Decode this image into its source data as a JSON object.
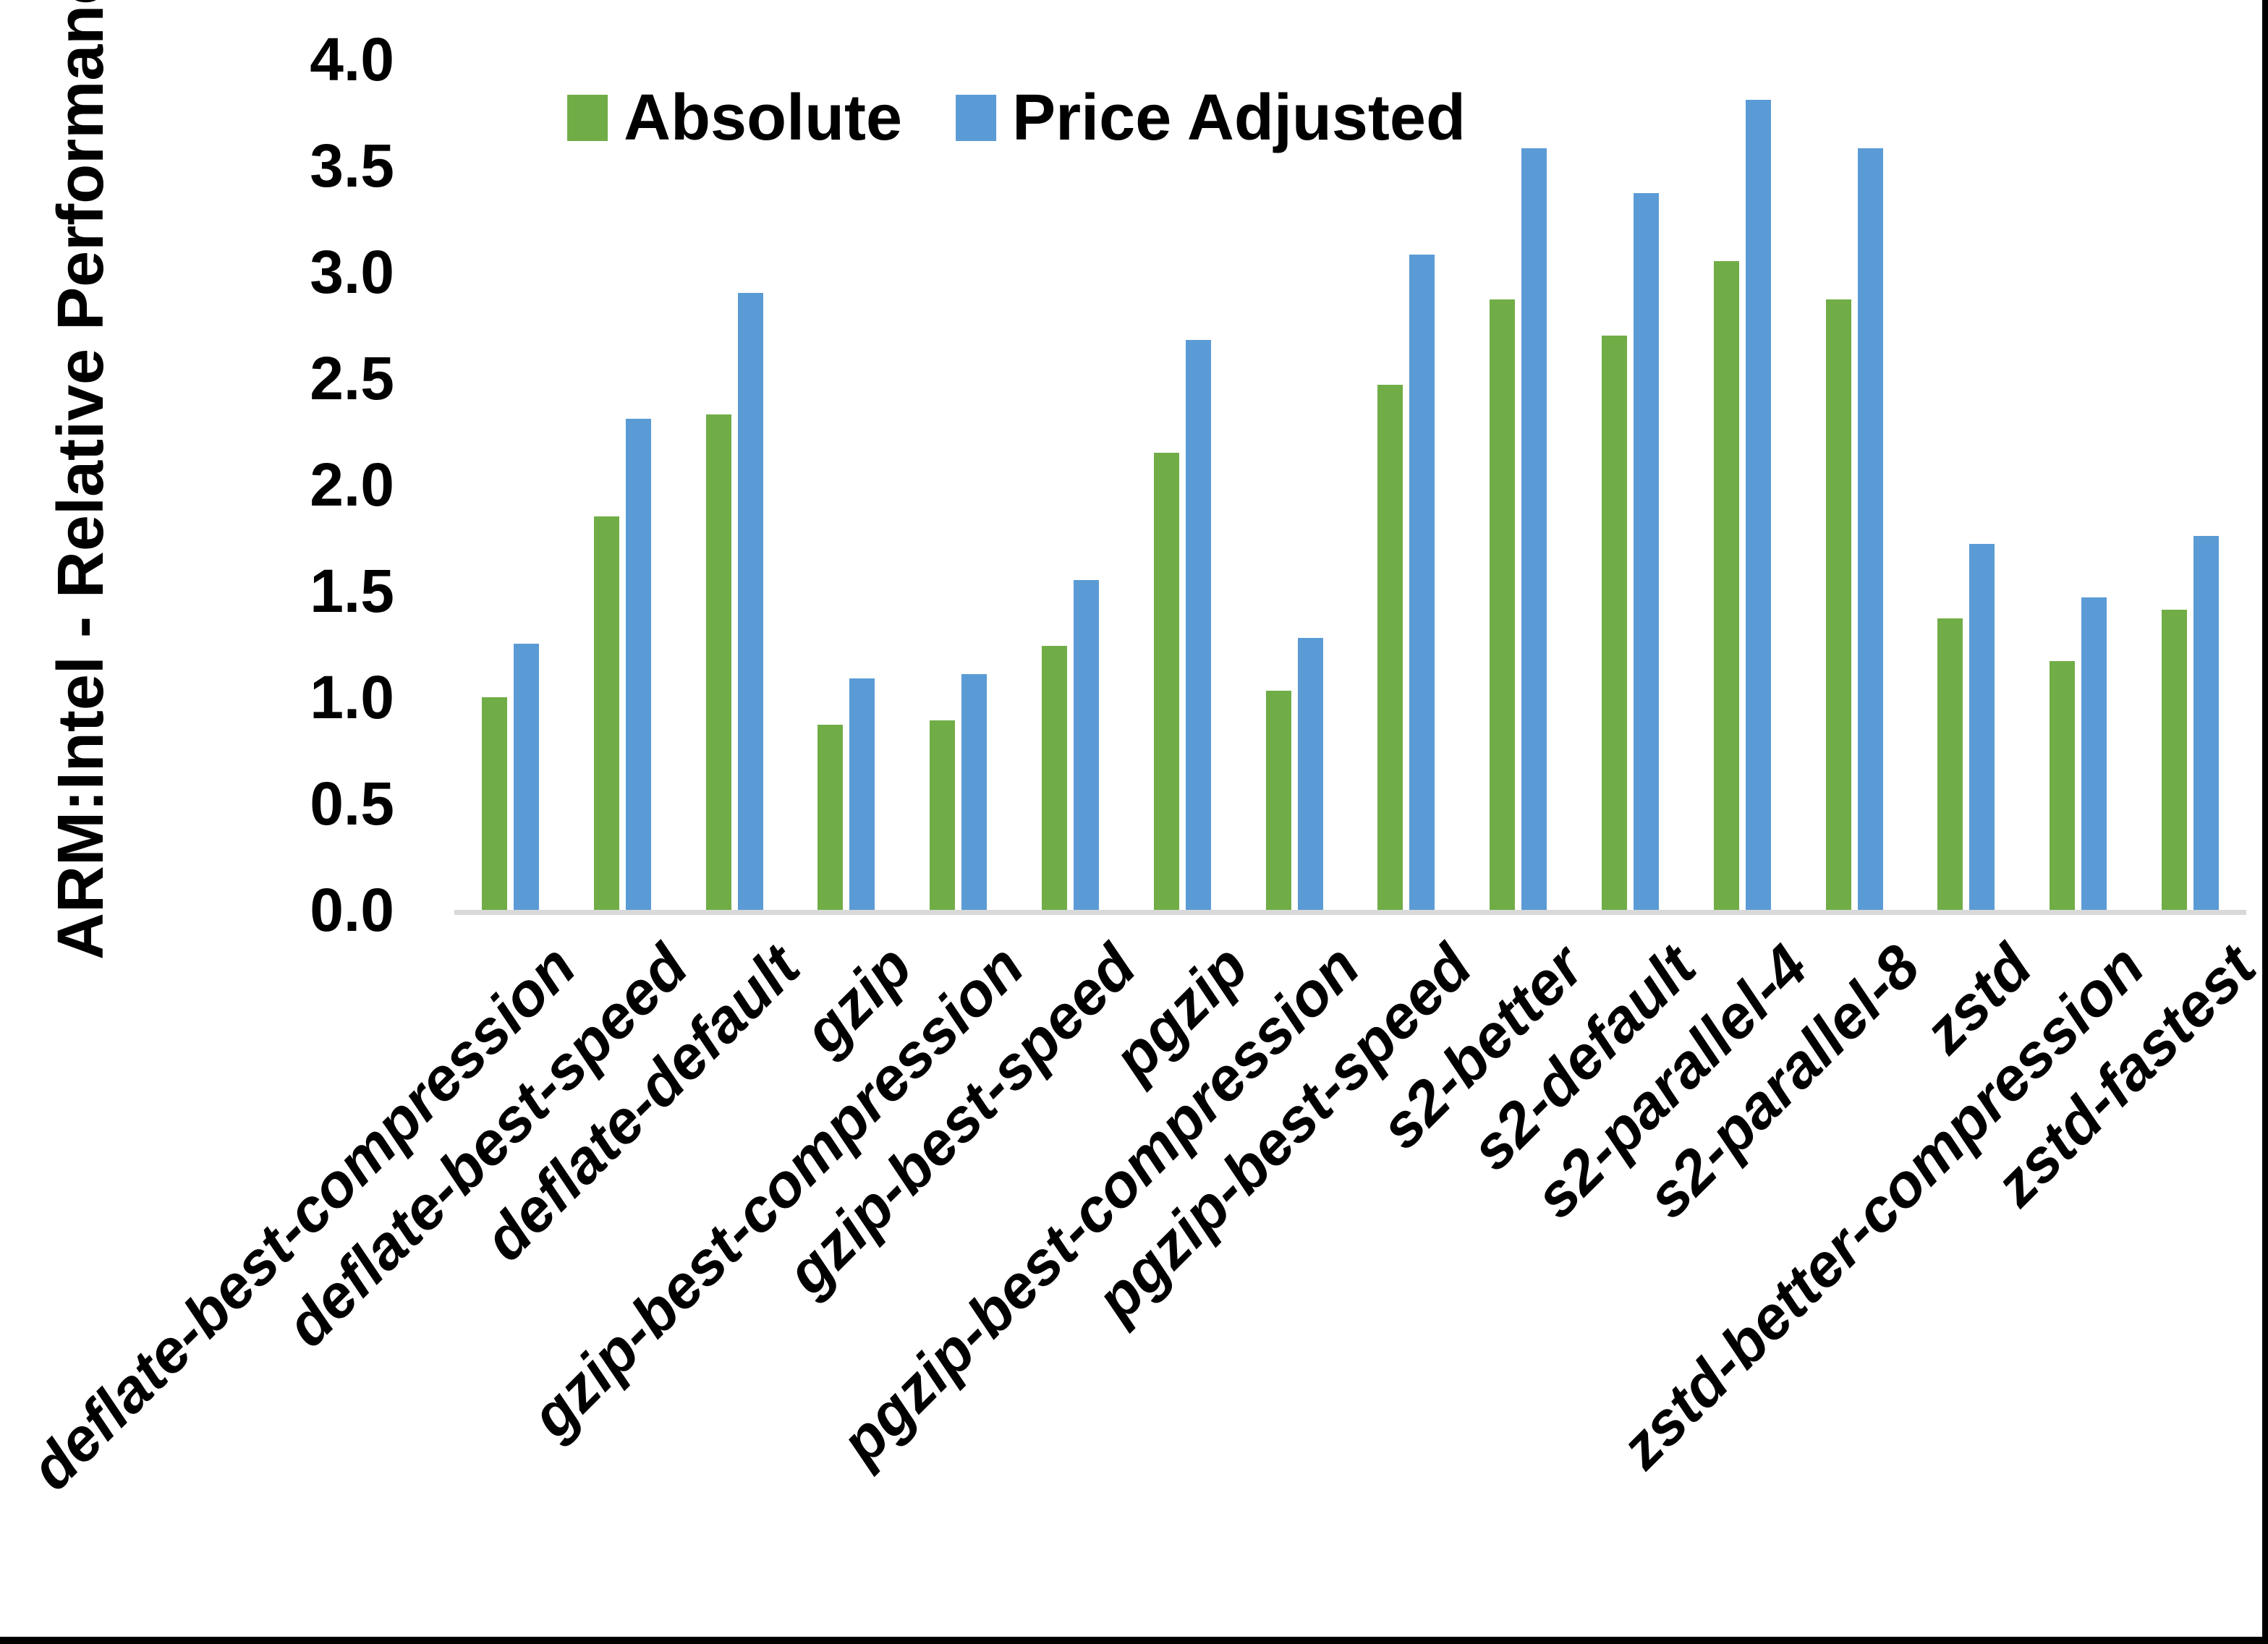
{
  "figure": {
    "kind": "pasted-excel-bar-chart-screenshot",
    "background": "#FFFFFF"
  },
  "y_axis": {
    "title": "ARM:Intel - Relative Performance",
    "tick_labels": [
      "0.0",
      "0.5",
      "1.0",
      "1.5",
      "2.0",
      "2.5",
      "3.0",
      "3.5",
      "4.0"
    ],
    "min": 0.0,
    "max": 4.0
  },
  "legend": {
    "items": [
      {
        "label": "Absolute",
        "color": "#70AD47"
      },
      {
        "label": "Price Adjusted",
        "color": "#5B9BD5"
      }
    ]
  },
  "chart_data": {
    "type": "bar",
    "title": "",
    "xlabel": "",
    "ylabel": "ARM:Intel - Relative Performance",
    "ylim": [
      0.0,
      4.0
    ],
    "yticks": [
      0.0,
      0.5,
      1.0,
      1.5,
      2.0,
      2.5,
      3.0,
      3.5,
      4.0
    ],
    "grid": false,
    "legend_position": "top-center",
    "categories": [
      "deflate-best-compression",
      "deflate-best-speed",
      "deflate-default",
      "gzip",
      "gzip-best-compression",
      "gzip-best-speed",
      "pgzip",
      "pgzip-best-compression",
      "pgzip-best-speed",
      "s2-better",
      "s2-default",
      "s2-parallel-4",
      "s2-parallel-8",
      "zstd",
      "zstd-better-compression",
      "zstd-fastest"
    ],
    "series": [
      {
        "name": "Absolute",
        "color": "#70AD47",
        "values": [
          1.0,
          1.85,
          2.33,
          0.87,
          0.89,
          1.24,
          2.15,
          1.03,
          2.47,
          2.87,
          2.7,
          3.05,
          2.87,
          1.37,
          1.17,
          1.41
        ]
      },
      {
        "name": "Price Adjusted",
        "color": "#5B9BD5",
        "values": [
          1.25,
          2.31,
          2.9,
          1.09,
          1.11,
          1.55,
          2.68,
          1.28,
          3.08,
          3.58,
          3.37,
          3.81,
          3.58,
          1.72,
          1.47,
          1.76
        ]
      }
    ]
  },
  "colors": {
    "axis_line": "#D9D9D9",
    "text": "#000000",
    "screen_border": "#000000"
  }
}
